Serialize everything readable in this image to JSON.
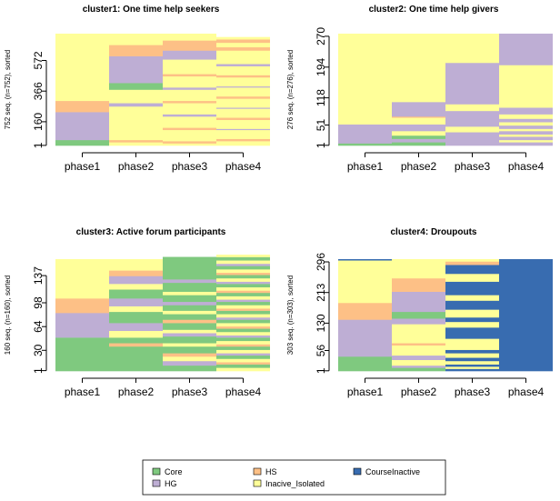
{
  "chart_data": [
    {
      "type": "heatmap",
      "title": "cluster1: One time help seekers",
      "ylabel": "752 seq. (n=752), sorted",
      "n": 752,
      "yticks": [
        1,
        160,
        366,
        572
      ],
      "categories": [
        "phase1",
        "phase2",
        "phase3",
        "phase4"
      ],
      "states_by_phase": [
        [
          [
            1,
            "Core",
            0.05
          ],
          [
            1,
            "HG",
            0.25
          ],
          [
            1,
            "HS",
            0.1
          ],
          [
            1,
            "Inacive_Isolated",
            0.6
          ]
        ],
        [
          [
            1,
            "Inacive_Isolated",
            0.03
          ],
          [
            1,
            "HS",
            0.02
          ],
          [
            1,
            "Inacive_Isolated",
            0.3
          ],
          [
            1,
            "HG",
            0.03
          ],
          [
            1,
            "Inacive_Isolated",
            0.12
          ],
          [
            1,
            "Core",
            0.06
          ],
          [
            1,
            "HG",
            0.24
          ],
          [
            1,
            "HS",
            0.1
          ],
          [
            1,
            "Inacive_Isolated",
            0.1
          ]
        ],
        [
          [
            1,
            "Inacive_Isolated",
            0.02
          ],
          [
            1,
            "HS",
            0.02
          ],
          [
            1,
            "Inacive_Isolated",
            0.1
          ],
          [
            1,
            "HS",
            0.02
          ],
          [
            1,
            "Inacive_Isolated",
            0.1
          ],
          [
            1,
            "HG",
            0.02
          ],
          [
            1,
            "Inacive_Isolated",
            0.1
          ],
          [
            1,
            "HS",
            0.02
          ],
          [
            1,
            "Inacive_Isolated",
            0.1
          ],
          [
            1,
            "HG",
            0.02
          ],
          [
            1,
            "Inacive_Isolated",
            0.1
          ],
          [
            1,
            "HS",
            0.02
          ],
          [
            1,
            "Inacive_Isolated",
            0.13
          ],
          [
            1,
            "HG",
            0.08
          ],
          [
            1,
            "HS",
            0.09
          ],
          [
            1,
            "Inacive_Isolated",
            0.06
          ]
        ],
        [
          [
            1,
            "Inacive_Isolated",
            0.04
          ],
          [
            1,
            "HS",
            0.02
          ],
          [
            1,
            "Inacive_Isolated",
            0.08
          ],
          [
            1,
            "HG",
            0.01
          ],
          [
            1,
            "Inacive_Isolated",
            0.08
          ],
          [
            1,
            "HS",
            0.02
          ],
          [
            1,
            "Inacive_Isolated",
            0.08
          ],
          [
            1,
            "HG",
            0.01
          ],
          [
            1,
            "Inacive_Isolated",
            0.08
          ],
          [
            1,
            "HS",
            0.02
          ],
          [
            1,
            "Inacive_Isolated",
            0.08
          ],
          [
            1,
            "HG",
            0.01
          ],
          [
            1,
            "Inacive_Isolated",
            0.08
          ],
          [
            1,
            "HS",
            0.02
          ],
          [
            1,
            "Inacive_Isolated",
            0.08
          ],
          [
            1,
            "HG",
            0.02
          ],
          [
            1,
            "Inacive_Isolated",
            0.12
          ],
          [
            1,
            "HS",
            0.03
          ],
          [
            1,
            "Inacive_Isolated",
            0.04
          ],
          [
            1,
            "HS",
            0.03
          ],
          [
            1,
            "Inacive_Isolated",
            0.02
          ]
        ]
      ]
    },
    {
      "type": "heatmap",
      "title": "cluster2: One time help givers",
      "ylabel": "276 seq. (n=276), sorted",
      "n": 276,
      "yticks": [
        1,
        51,
        118,
        194,
        270
      ],
      "categories": [
        "phase1",
        "phase2",
        "phase3",
        "phase4"
      ],
      "states_by_phase": [
        [
          [
            1,
            "Core",
            0.02
          ],
          [
            1,
            "HG",
            0.17
          ],
          [
            1,
            "Inacive_Isolated",
            0.81
          ]
        ],
        [
          [
            1,
            "Core",
            0.03
          ],
          [
            1,
            "HG",
            0.03
          ],
          [
            1,
            "Core",
            0.03
          ],
          [
            1,
            "Inacive_Isolated",
            0.04
          ],
          [
            1,
            "HG",
            0.06
          ],
          [
            1,
            "Inacive_Isolated",
            0.06
          ],
          [
            1,
            "HS",
            0.01
          ],
          [
            1,
            "HG",
            0.13
          ],
          [
            1,
            "Inacive_Isolated",
            0.61
          ]
        ],
        [
          [
            1,
            "HG",
            0.12
          ],
          [
            1,
            "Inacive_Isolated",
            0.05
          ],
          [
            1,
            "HG",
            0.14
          ],
          [
            1,
            "Inacive_Isolated",
            0.06
          ],
          [
            1,
            "HG",
            0.37
          ],
          [
            1,
            "Inacive_Isolated",
            0.26
          ]
        ],
        [
          [
            1,
            "HG",
            0.03
          ],
          [
            1,
            "Inacive_Isolated",
            0.02
          ],
          [
            1,
            "HG",
            0.03
          ],
          [
            1,
            "Inacive_Isolated",
            0.02
          ],
          [
            1,
            "HG",
            0.03
          ],
          [
            1,
            "Inacive_Isolated",
            0.02
          ],
          [
            1,
            "HG",
            0.03
          ],
          [
            1,
            "Inacive_Isolated",
            0.03
          ],
          [
            1,
            "HG",
            0.03
          ],
          [
            1,
            "Inacive_Isolated",
            0.04
          ],
          [
            1,
            "HG",
            0.06
          ],
          [
            1,
            "Inacive_Isolated",
            0.38
          ],
          [
            1,
            "HG",
            0.28
          ]
        ]
      ]
    },
    {
      "type": "heatmap",
      "title": "cluster3: Active forum participants",
      "ylabel": "160 seq. (n=160), sorted",
      "n": 160,
      "yticks": [
        1,
        30,
        64,
        98,
        137
      ],
      "categories": [
        "phase1",
        "phase2",
        "phase3",
        "phase4"
      ],
      "states_by_phase": [
        [
          [
            1,
            "Core",
            0.3
          ],
          [
            1,
            "HG",
            0.22
          ],
          [
            1,
            "HS",
            0.13
          ],
          [
            1,
            "Inacive_Isolated",
            0.35
          ]
        ],
        [
          [
            1,
            "Core",
            0.22
          ],
          [
            1,
            "HS",
            0.03
          ],
          [
            1,
            "Core",
            0.05
          ],
          [
            1,
            "Inacive_Isolated",
            0.06
          ],
          [
            1,
            "HG",
            0.07
          ],
          [
            1,
            "Core",
            0.1
          ],
          [
            1,
            "Inacive_Isolated",
            0.05
          ],
          [
            1,
            "HG",
            0.07
          ],
          [
            1,
            "Core",
            0.08
          ],
          [
            1,
            "Inacive_Isolated",
            0.05
          ],
          [
            1,
            "HG",
            0.07
          ],
          [
            1,
            "HS",
            0.05
          ],
          [
            1,
            "Inacive_Isolated",
            0.1
          ]
        ],
        [
          [
            1,
            "Core",
            0.05
          ],
          [
            1,
            "HG",
            0.04
          ],
          [
            1,
            "Inacive_Isolated",
            0.04
          ],
          [
            1,
            "HS",
            0.03
          ],
          [
            1,
            "Core",
            0.06
          ],
          [
            1,
            "Inacive_Isolated",
            0.03
          ],
          [
            1,
            "Core",
            0.06
          ],
          [
            1,
            "HG",
            0.03
          ],
          [
            1,
            "Inacive_Isolated",
            0.03
          ],
          [
            1,
            "Core",
            0.06
          ],
          [
            1,
            "HS",
            0.03
          ],
          [
            1,
            "Core",
            0.05
          ],
          [
            1,
            "Inacive_Isolated",
            0.03
          ],
          [
            1,
            "Core",
            0.05
          ],
          [
            1,
            "HG",
            0.03
          ],
          [
            1,
            "Core",
            0.06
          ],
          [
            1,
            "Inacive_Isolated",
            0.03
          ],
          [
            1,
            "Core",
            0.08
          ],
          [
            1,
            "HG",
            0.03
          ],
          [
            1,
            "Core",
            0.2
          ]
        ],
        [
          [
            1,
            "Inacive_Isolated",
            0.03
          ],
          [
            1,
            "Core",
            0.03
          ],
          [
            1,
            "HS",
            0.02
          ],
          [
            1,
            "Inacive_Isolated",
            0.03
          ],
          [
            1,
            "Core",
            0.03
          ],
          [
            1,
            "HG",
            0.02
          ],
          [
            1,
            "Inacive_Isolated",
            0.03
          ],
          [
            1,
            "Core",
            0.03
          ],
          [
            1,
            "HS",
            0.02
          ],
          [
            1,
            "Inacive_Isolated",
            0.03
          ],
          [
            1,
            "Core",
            0.03
          ],
          [
            1,
            "HG",
            0.02
          ],
          [
            1,
            "Inacive_Isolated",
            0.03
          ],
          [
            1,
            "Core",
            0.03
          ],
          [
            1,
            "HS",
            0.02
          ],
          [
            1,
            "Inacive_Isolated",
            0.03
          ],
          [
            1,
            "Core",
            0.03
          ],
          [
            1,
            "HG",
            0.02
          ],
          [
            1,
            "Inacive_Isolated",
            0.03
          ],
          [
            1,
            "Core",
            0.03
          ],
          [
            1,
            "HS",
            0.02
          ],
          [
            1,
            "Inacive_Isolated",
            0.03
          ],
          [
            1,
            "Core",
            0.03
          ],
          [
            1,
            "HG",
            0.02
          ],
          [
            1,
            "Inacive_Isolated",
            0.03
          ],
          [
            1,
            "Core",
            0.03
          ],
          [
            1,
            "HS",
            0.02
          ],
          [
            1,
            "Inacive_Isolated",
            0.03
          ],
          [
            1,
            "Core",
            0.03
          ],
          [
            1,
            "HG",
            0.02
          ],
          [
            1,
            "Inacive_Isolated",
            0.03
          ],
          [
            1,
            "Core",
            0.03
          ],
          [
            1,
            "HS",
            0.02
          ],
          [
            1,
            "Inacive_Isolated",
            0.03
          ],
          [
            1,
            "Core",
            0.03
          ],
          [
            1,
            "HG",
            0.02
          ],
          [
            1,
            "Inacive_Isolated",
            0.03
          ],
          [
            1,
            "Core",
            0.03
          ],
          [
            1,
            "Inacive_Isolated",
            0.02
          ]
        ]
      ]
    },
    {
      "type": "heatmap",
      "title": "cluster4: Droupouts",
      "ylabel": "303 seq. (n=303), sorted",
      "n": 303,
      "yticks": [
        1,
        56,
        130,
        213,
        296
      ],
      "categories": [
        "phase1",
        "phase2",
        "phase3",
        "phase4"
      ],
      "states_by_phase": [
        [
          [
            1,
            "Core",
            0.13
          ],
          [
            1,
            "HG",
            0.33
          ],
          [
            1,
            "HS",
            0.15
          ],
          [
            1,
            "Inacive_Isolated",
            0.38
          ],
          [
            1,
            "CourseInactive",
            0.01
          ]
        ],
        [
          [
            1,
            "Core",
            0.03
          ],
          [
            1,
            "HG",
            0.02
          ],
          [
            1,
            "Inacive_Isolated",
            0.05
          ],
          [
            1,
            "HG",
            0.04
          ],
          [
            1,
            "Inacive_Isolated",
            0.09
          ],
          [
            1,
            "HS",
            0.02
          ],
          [
            1,
            "Inacive_Isolated",
            0.17
          ],
          [
            1,
            "HG",
            0.05
          ],
          [
            1,
            "Core",
            0.06
          ],
          [
            1,
            "HG",
            0.18
          ],
          [
            1,
            "HS",
            0.12
          ],
          [
            1,
            "Inacive_Isolated",
            0.17
          ]
        ],
        [
          [
            1,
            "CourseInactive",
            0.02
          ],
          [
            1,
            "Inacive_Isolated",
            0.02
          ],
          [
            1,
            "CourseInactive",
            0.02
          ],
          [
            1,
            "Inacive_Isolated",
            0.03
          ],
          [
            1,
            "CourseInactive",
            0.03
          ],
          [
            1,
            "Inacive_Isolated",
            0.04
          ],
          [
            1,
            "CourseInactive",
            0.03
          ],
          [
            1,
            "Inacive_Isolated",
            0.1
          ],
          [
            1,
            "CourseInactive",
            0.1
          ],
          [
            1,
            "Inacive_Isolated",
            0.05
          ],
          [
            1,
            "CourseInactive",
            0.04
          ],
          [
            1,
            "Inacive_Isolated",
            0.07
          ],
          [
            1,
            "CourseInactive",
            0.08
          ],
          [
            1,
            "Inacive_Isolated",
            0.05
          ],
          [
            1,
            "CourseInactive",
            0.12
          ],
          [
            1,
            "Inacive_Isolated",
            0.07
          ],
          [
            1,
            "CourseInactive",
            0.08
          ],
          [
            1,
            "HS",
            0.03
          ],
          [
            1,
            "Inacive_Isolated",
            0.02
          ]
        ],
        [
          [
            1,
            "CourseInactive",
            1.0
          ]
        ]
      ]
    }
  ],
  "xaxis_labels": [
    "phase1",
    "phase2",
    "phase3",
    "phase4"
  ],
  "legend": {
    "placement": "bottom-center",
    "items": [
      {
        "label": "Core",
        "color": "#7fc97f"
      },
      {
        "label": "HG",
        "color": "#beaed4"
      },
      {
        "label": "HS",
        "color": "#fdc086"
      },
      {
        "label": "Inacive_Isolated",
        "color": "#ffff99"
      },
      {
        "label": "CourseInactive",
        "color": "#386cb0"
      }
    ]
  },
  "colors": {
    "Core": "#7fc97f",
    "HG": "#beaed4",
    "HS": "#fdc086",
    "Inacive_Isolated": "#ffff99",
    "CourseInactive": "#386cb0"
  }
}
